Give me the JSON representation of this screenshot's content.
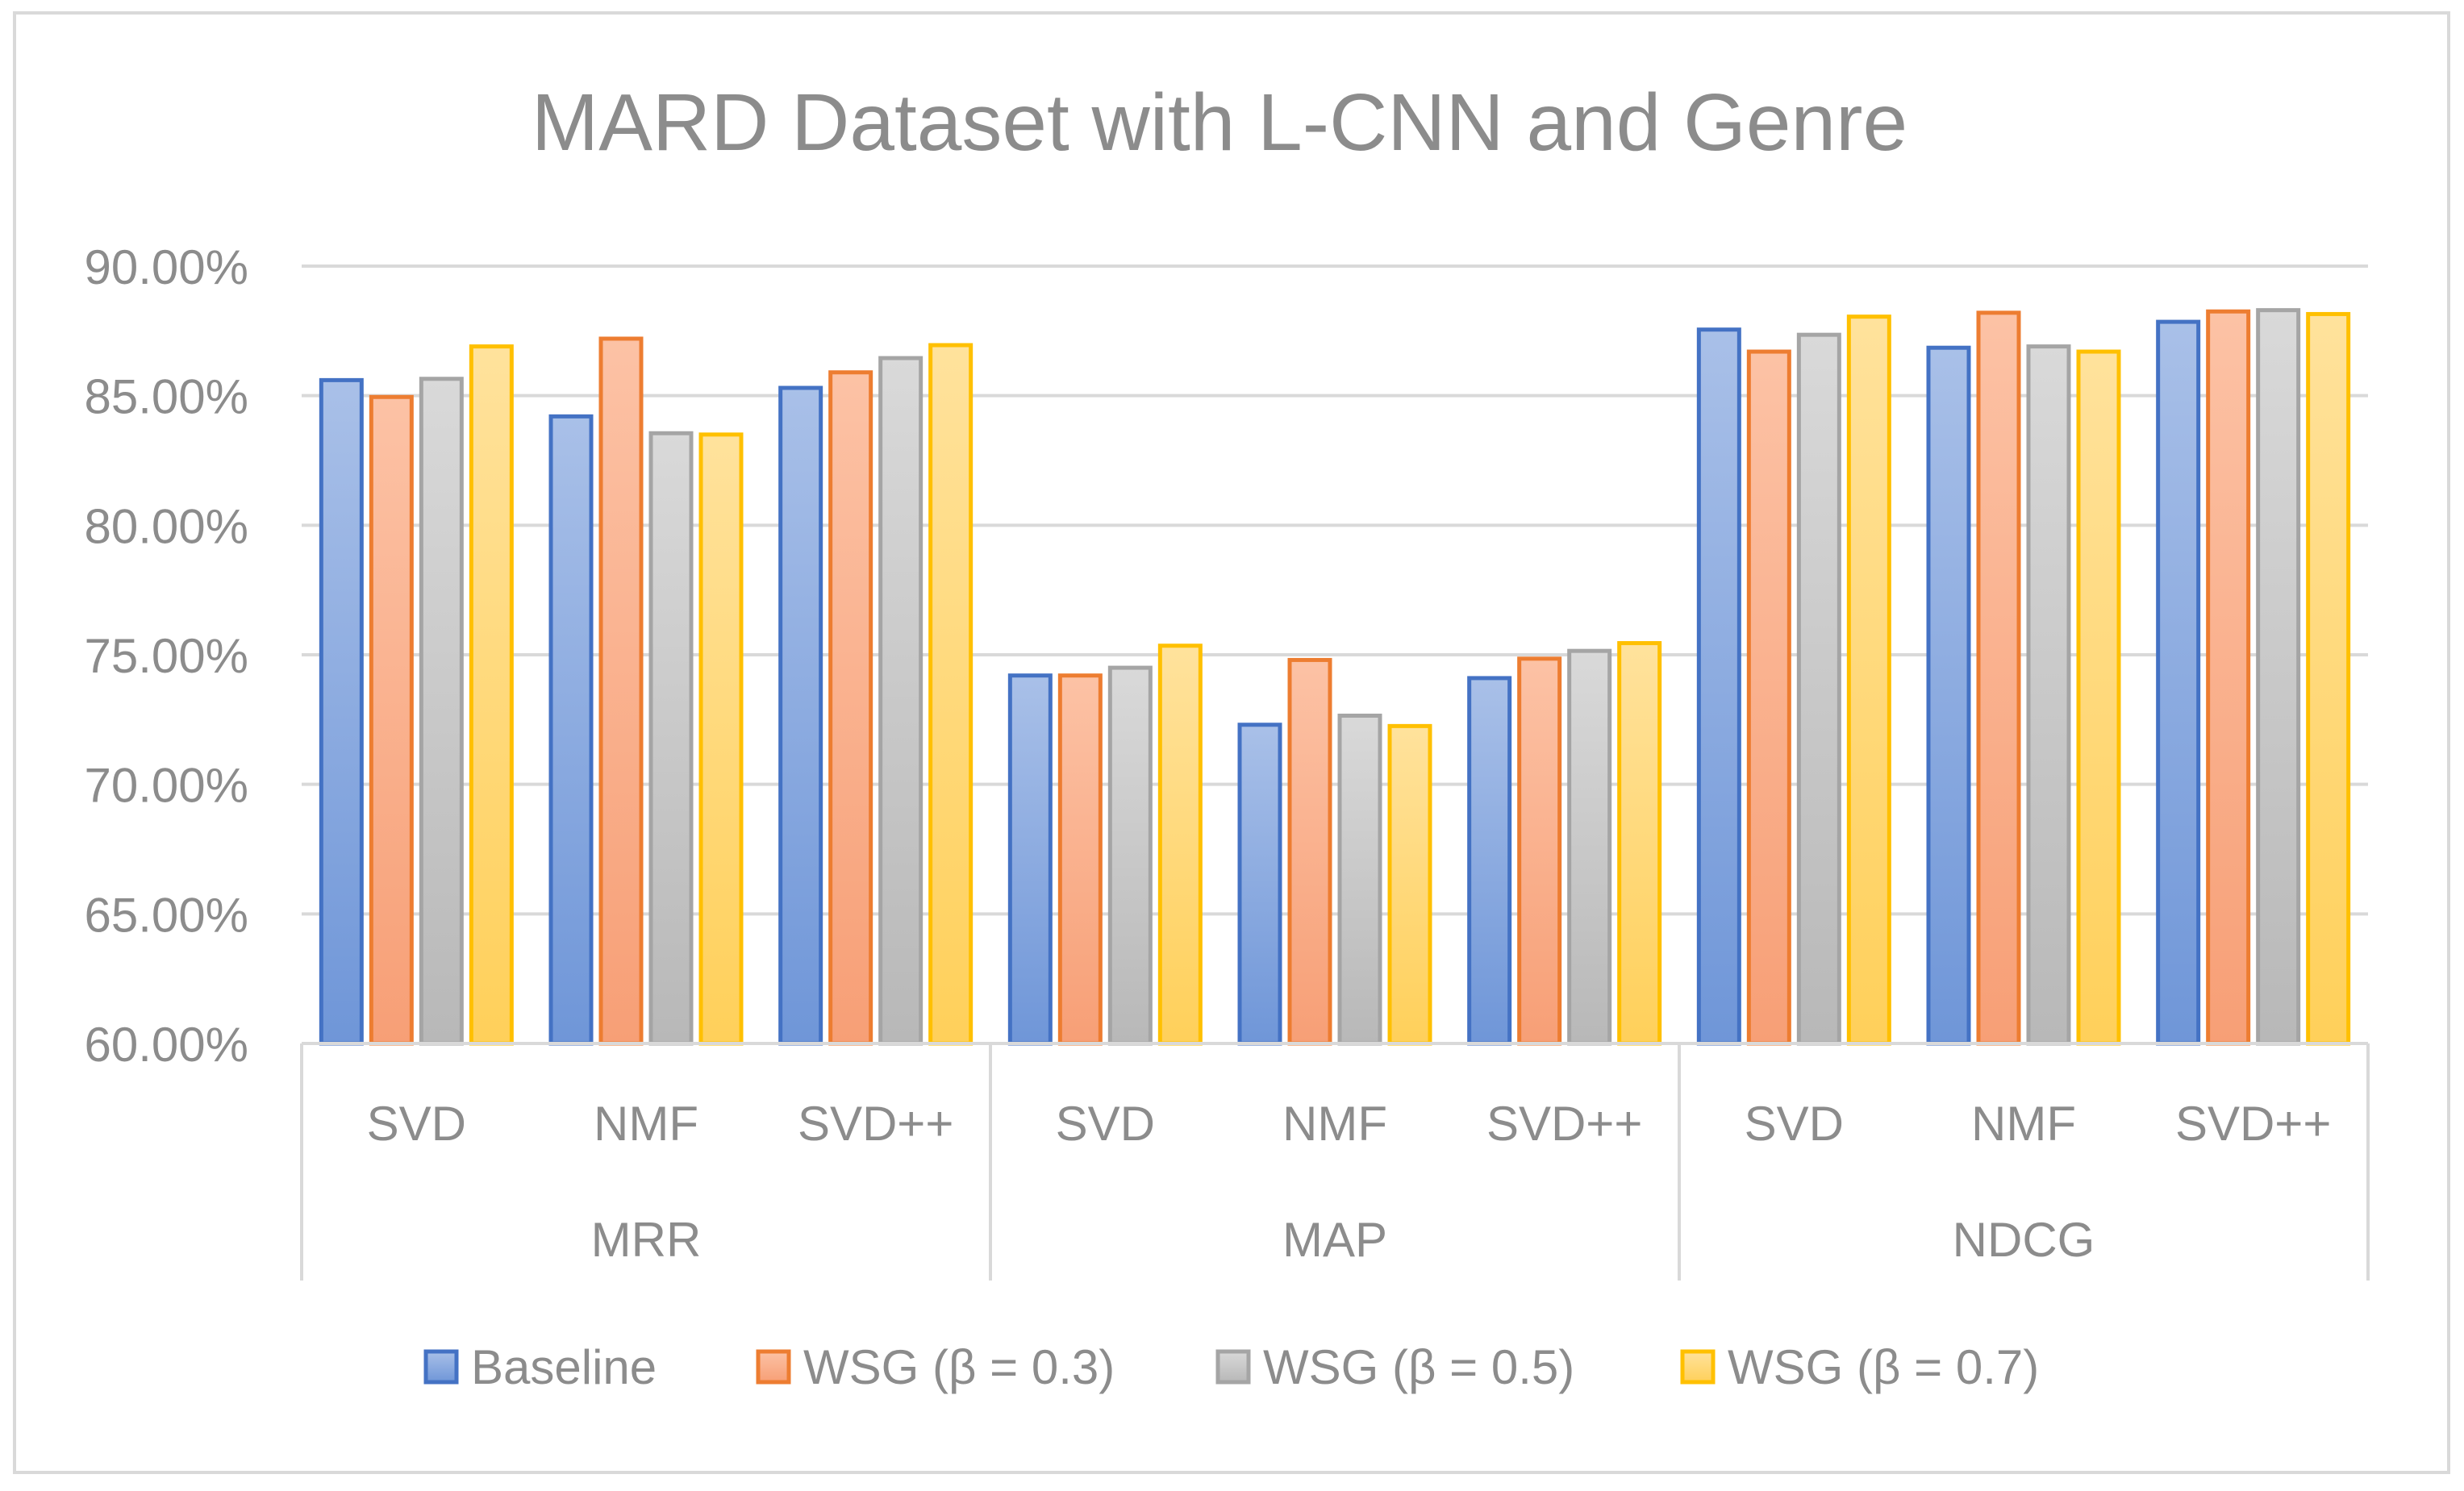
{
  "chart_data": {
    "type": "bar",
    "title": "MARD Dataset with L-CNN and Genre",
    "xlabel": "",
    "ylabel": "",
    "ylim": [
      0.6,
      0.9
    ],
    "ytick_values": [
      0.6,
      0.65,
      0.7,
      0.75,
      0.8,
      0.85,
      0.9
    ],
    "ytick_labels": [
      "60.00%",
      "65.00%",
      "70.00%",
      "75.00%",
      "80.00%",
      "85.00%",
      "90.00%"
    ],
    "grid": true,
    "legend_position": "bottom",
    "groups": [
      {
        "label": "MRR",
        "categories": [
          "SVD",
          "NMF",
          "SVD++"
        ]
      },
      {
        "label": "MAP",
        "categories": [
          "SVD",
          "NMF",
          "SVD++"
        ]
      },
      {
        "label": "NDCG",
        "categories": [
          "SVD",
          "NMF",
          "SVD++"
        ]
      }
    ],
    "categories": [
      "SVD",
      "NMF",
      "SVD++",
      "SVD",
      "NMF",
      "SVD++",
      "SVD",
      "NMF",
      "SVD++"
    ],
    "series": [
      {
        "name": "Baseline",
        "color": "#4472C4",
        "fill_top": "#A9C0E8",
        "fill_bottom": "#6F96D8",
        "values": [
          0.856,
          0.842,
          0.853,
          0.742,
          0.723,
          0.741,
          0.8755,
          0.8685,
          0.8785
        ]
      },
      {
        "name": "WSG (β = 0.3)",
        "color": "#ED7D31",
        "fill_top": "#FCC2A5",
        "fill_bottom": "#F79F76",
        "values": [
          0.8495,
          0.872,
          0.859,
          0.742,
          0.748,
          0.7485,
          0.867,
          0.882,
          0.8825
        ]
      },
      {
        "name": "WSG (β = 0.5)",
        "color": "#A5A5A5",
        "fill_top": "#D9D9D9",
        "fill_bottom": "#B8B8B8",
        "values": [
          0.8565,
          0.8355,
          0.8645,
          0.745,
          0.7265,
          0.7515,
          0.8735,
          0.869,
          0.883
        ]
      },
      {
        "name": "WSG (β = 0.7)",
        "color": "#FFC000",
        "fill_top": "#FFE29C",
        "fill_bottom": "#FFD05A",
        "values": [
          0.869,
          0.835,
          0.8695,
          0.7535,
          0.7225,
          0.7545,
          0.8805,
          0.867,
          0.8815
        ]
      }
    ]
  }
}
